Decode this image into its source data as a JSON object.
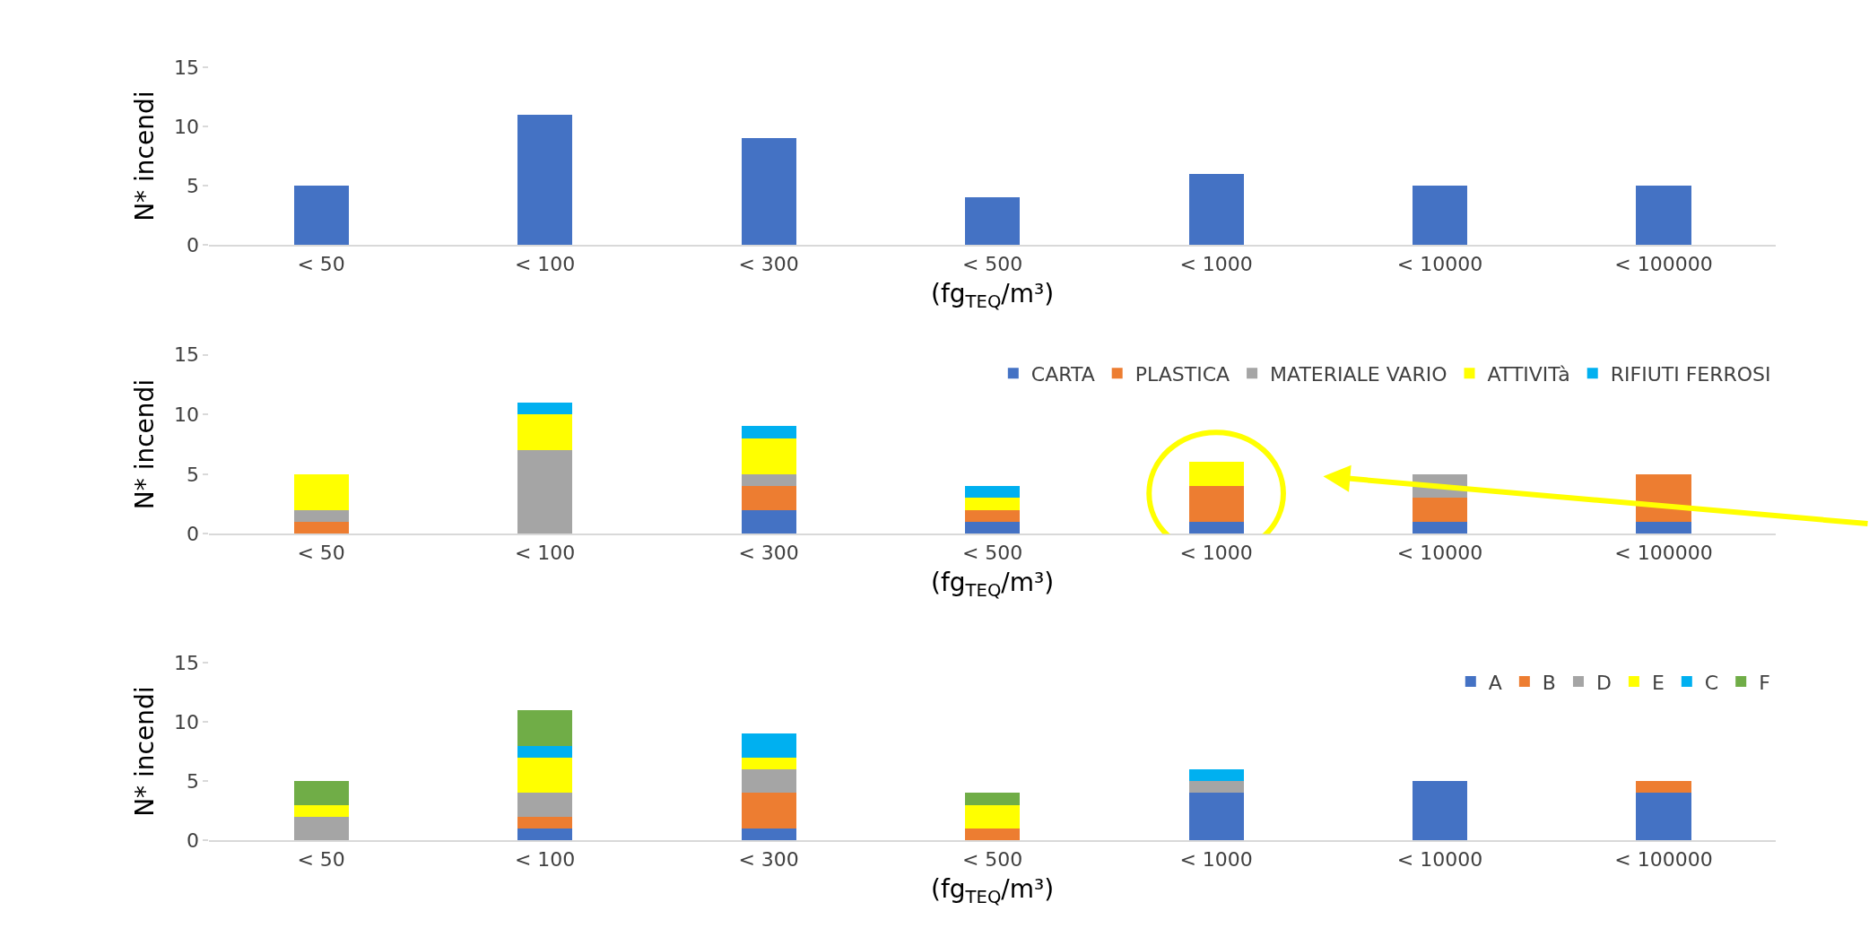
{
  "chart_data": [
    {
      "type": "bar",
      "categories": [
        "< 50",
        "< 100",
        "< 300",
        "< 500",
        "< 1000",
        "< 10000",
        "< 100000"
      ],
      "values": [
        5,
        11,
        9,
        4,
        6,
        5,
        5
      ],
      "color": "#4472c4",
      "xlabel": "(fg$_{TEQ}$/m³)",
      "ylabel": "N* incendi",
      "ylim": [
        0,
        15
      ],
      "yticks": [
        0,
        5,
        10,
        15
      ]
    },
    {
      "type": "bar",
      "stacked": true,
      "legend": "top right",
      "categories": [
        "< 50",
        "< 100",
        "< 300",
        "< 500",
        "< 1000",
        "< 10000",
        "< 100000"
      ],
      "xlabel": "(fg$_{TEQ}$/m³)",
      "ylabel": "N* incendi",
      "ylim": [
        0,
        15
      ],
      "yticks": [
        0,
        5,
        10,
        15
      ],
      "series": [
        {
          "name": "CARTA",
          "color": "#4472c4",
          "values": [
            0,
            0,
            2,
            1,
            1,
            1,
            1
          ]
        },
        {
          "name": "PLASTICA",
          "color": "#ed7d31",
          "values": [
            1,
            0,
            2,
            1,
            3,
            2,
            4
          ]
        },
        {
          "name": "MATERIALE VARIO",
          "color": "#a5a5a5",
          "values": [
            1,
            7,
            1,
            0,
            0,
            2,
            0
          ]
        },
        {
          "name": "ATTIVITà",
          "color": "#ffff00",
          "values": [
            3,
            3,
            3,
            1,
            2,
            0,
            0
          ]
        },
        {
          "name": "RIFIUTI FERROSI",
          "color": "#00b0f0",
          "values": [
            0,
            1,
            1,
            1,
            0,
            0,
            0
          ]
        }
      ]
    },
    {
      "type": "bar",
      "stacked": true,
      "legend": "top right",
      "categories": [
        "< 50",
        "< 100",
        "< 300",
        "< 500",
        "< 1000",
        "< 10000",
        "< 100000"
      ],
      "xlabel": "(fg$_{TEQ}$/m³)",
      "ylabel": "N* incendi",
      "ylim": [
        0,
        15
      ],
      "yticks": [
        0,
        5,
        10,
        15
      ],
      "series": [
        {
          "name": "A",
          "color": "#4472c4",
          "values": [
            0,
            1,
            1,
            0,
            4,
            5,
            4
          ]
        },
        {
          "name": "B",
          "color": "#ed7d31",
          "values": [
            0,
            1,
            3,
            1,
            0,
            0,
            1
          ]
        },
        {
          "name": "D",
          "color": "#a5a5a5",
          "values": [
            2,
            2,
            2,
            0,
            1,
            0,
            0
          ]
        },
        {
          "name": "E",
          "color": "#ffff00",
          "values": [
            1,
            3,
            1,
            2,
            0,
            0,
            0
          ]
        },
        {
          "name": "C",
          "color": "#00b0f0",
          "values": [
            0,
            1,
            2,
            0,
            1,
            0,
            0
          ]
        },
        {
          "name": "F",
          "color": "#70ad47",
          "values": [
            2,
            3,
            0,
            1,
            0,
            0,
            0
          ]
        }
      ]
    }
  ]
}
